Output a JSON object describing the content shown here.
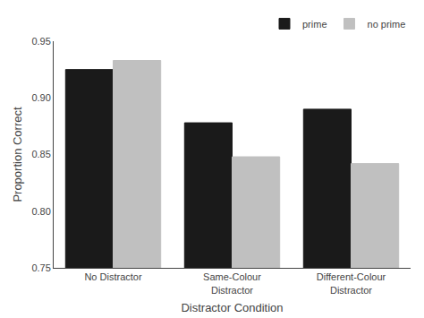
{
  "chart_data": {
    "type": "bar",
    "categories": [
      "No Distractor",
      "Same-Colour\nDistractor",
      "Different-Colour\nDistractor"
    ],
    "series": [
      {
        "name": "prime",
        "color": "#1a1a1a",
        "values": [
          0.925,
          0.878,
          0.89
        ]
      },
      {
        "name": "no prime",
        "color": "#c0c0c0",
        "values": [
          0.933,
          0.848,
          0.842
        ]
      }
    ],
    "xlabel": "Distractor Condition",
    "ylabel": "Proportion Correct",
    "ylim": [
      0.75,
      0.95
    ],
    "yticks": [
      0.75,
      {
        "value": 0.8,
        "label": "0.80"
      },
      0.85,
      {
        "value": 0.9,
        "label": "0.90"
      },
      0.95
    ],
    "grid": false,
    "legend": "upper right"
  }
}
